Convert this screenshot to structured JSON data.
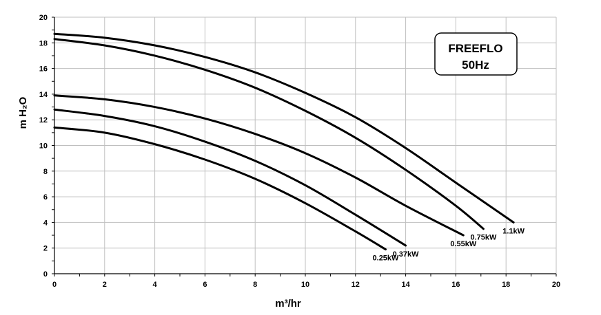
{
  "chart_data": {
    "type": "line",
    "title": "FREEFLO",
    "subtitle": "50Hz",
    "xlabel": "m³/hr",
    "ylabel": "m H₂O",
    "xlim": [
      0,
      20
    ],
    "ylim": [
      0,
      20
    ],
    "x_ticks": [
      0,
      2,
      4,
      6,
      8,
      10,
      12,
      14,
      16,
      18,
      20
    ],
    "y_ticks": [
      0,
      2,
      4,
      6,
      8,
      10,
      12,
      14,
      16,
      18,
      20
    ],
    "grid": true,
    "series": [
      {
        "name": "0.25kW",
        "x": [
          0,
          2,
          4,
          6,
          8,
          10,
          12,
          13.2
        ],
        "y": [
          11.4,
          11.0,
          10.1,
          8.9,
          7.4,
          5.5,
          3.3,
          1.9
        ]
      },
      {
        "name": "0.37kW",
        "x": [
          0,
          2,
          4,
          6,
          8,
          10,
          12,
          14.0
        ],
        "y": [
          12.8,
          12.3,
          11.5,
          10.3,
          8.8,
          6.9,
          4.6,
          2.2
        ]
      },
      {
        "name": "0.55kW",
        "x": [
          0,
          2,
          4,
          6,
          8,
          10,
          12,
          14,
          16.3
        ],
        "y": [
          13.9,
          13.6,
          13.0,
          12.1,
          10.9,
          9.4,
          7.5,
          5.3,
          3.0
        ]
      },
      {
        "name": "0.75kW",
        "x": [
          0,
          2,
          4,
          6,
          8,
          10,
          12,
          14,
          16,
          17.1
        ],
        "y": [
          18.3,
          17.8,
          17.0,
          15.9,
          14.5,
          12.7,
          10.6,
          8.1,
          5.3,
          3.5
        ]
      },
      {
        "name": "1.1kW",
        "x": [
          0,
          2,
          4,
          6,
          8,
          10,
          12,
          14,
          16,
          18.3
        ],
        "y": [
          18.7,
          18.4,
          17.8,
          16.9,
          15.7,
          14.1,
          12.2,
          9.8,
          7.1,
          4.0
        ]
      }
    ]
  }
}
